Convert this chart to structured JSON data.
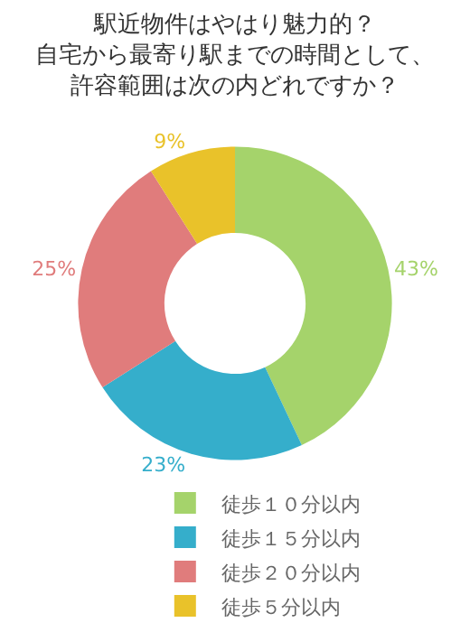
{
  "chart_data": {
    "type": "donut",
    "title": "駅近物件はやはり魅力的？自宅から最寄り駅までの時間として、許容範囲は次の内どれですか？",
    "categories": [
      "徒歩１０分以内",
      "徒歩１５分以内",
      "徒歩２０分以内",
      "徒歩５分以内"
    ],
    "values": [
      43,
      23,
      25,
      9
    ],
    "value_labels": [
      "43%",
      "23%",
      "25%",
      "9%"
    ],
    "colors": [
      "#a5d36b",
      "#35aecb",
      "#e07c7c",
      "#e9c22a"
    ],
    "legend": "bottom"
  }
}
